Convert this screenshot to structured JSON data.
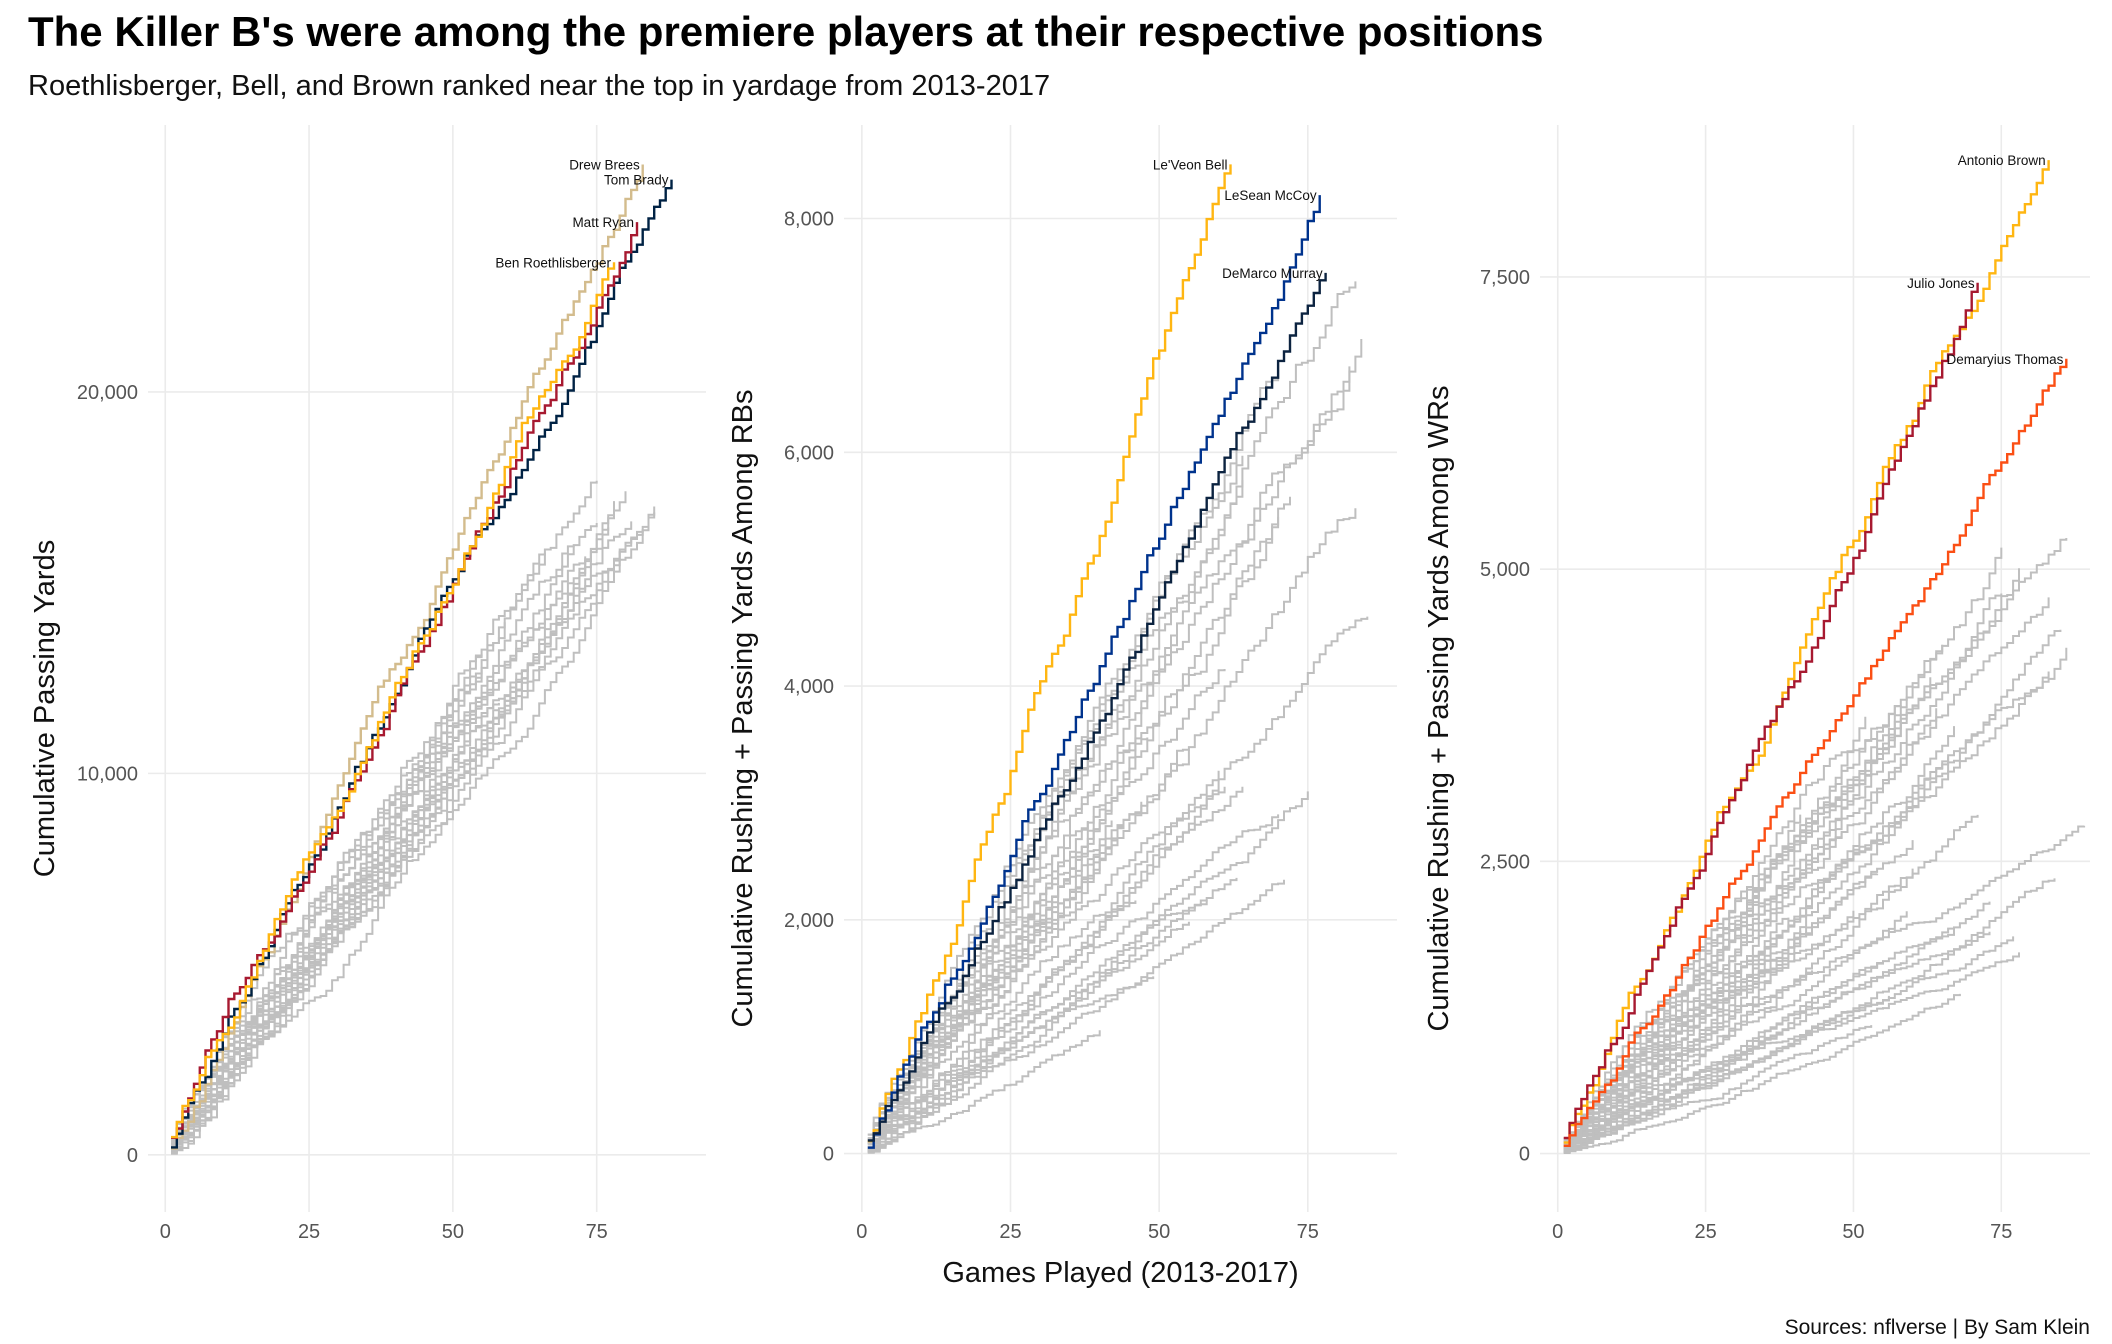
{
  "title": "The Killer B's were among the premiere players at their respective positions",
  "subtitle": "Roethlisberger, Bell, and Brown ranked near the top in yardage from 2013-2017",
  "caption": "Sources: nflverse | By Sam Klein",
  "colors": {
    "background_line": "#bfbfbf",
    "grid": "#ebebeb",
    "steelers_gold": "#FFB612"
  },
  "chart_data": [
    {
      "type": "line",
      "step": true,
      "ylabel": "Cumulative Passing Yards",
      "xlabel": "",
      "xlim": [
        -3,
        94
      ],
      "ylim": [
        -1500,
        27000
      ],
      "x_ticks": [
        0,
        25,
        50,
        75
      ],
      "y_ticks": [
        0,
        10000,
        20000
      ],
      "y_tick_labels": [
        "0",
        "10,000",
        "20,000"
      ],
      "grid": true,
      "background_series": {
        "count": 24,
        "color": "#bfbfbf",
        "games_min": 48,
        "games_max": 88,
        "rate_min": 195,
        "rate_max": 240
      },
      "series": [
        {
          "name": "Drew Brees",
          "color": "#D3BC8D",
          "games": 83,
          "total": 25965
        },
        {
          "name": "Tom Brady",
          "color": "#002244",
          "games": 88,
          "total": 25568
        },
        {
          "name": "Matt Ryan",
          "color": "#A71930",
          "games": 82,
          "total": 24455
        },
        {
          "name": "Ben Roethlisberger",
          "color": "#FFB612",
          "games": 78,
          "total": 23401
        }
      ]
    },
    {
      "type": "line",
      "step": true,
      "ylabel": "Cumulative Rushing + Passing Yards Among RBs",
      "xlabel": "Games Played (2013-2017)",
      "xlim": [
        -3,
        90
      ],
      "ylim": [
        -500,
        8800
      ],
      "x_ticks": [
        0,
        25,
        50,
        75
      ],
      "y_ticks": [
        0,
        2000,
        4000,
        6000,
        8000
      ],
      "y_tick_labels": [
        "0",
        "2,000",
        "4,000",
        "6,000",
        "8,000"
      ],
      "grid": true,
      "background_series": {
        "count": 34,
        "color": "#bfbfbf",
        "games_min": 30,
        "games_max": 86,
        "rate_min": 25,
        "rate_max": 95
      },
      "series": [
        {
          "name": "Le'Veon Bell",
          "color": "#FFB612",
          "games": 62,
          "total": 8463
        },
        {
          "name": "LeSean McCoy",
          "color": "#00338D",
          "games": 77,
          "total": 8200
        },
        {
          "name": "DeMarco Murray",
          "color": "#0C2340",
          "games": 78,
          "total": 7535
        }
      ]
    },
    {
      "type": "line",
      "step": true,
      "ylabel": "Cumulative Rushing + Passing Yards Among WRs",
      "xlabel": "",
      "xlim": [
        -3,
        90
      ],
      "ylim": [
        -500,
        8800
      ],
      "x_ticks": [
        0,
        25,
        50,
        75
      ],
      "y_ticks": [
        0,
        2500,
        5000,
        7500
      ],
      "y_tick_labels": [
        "0",
        "2,500",
        "5,000",
        "7,500"
      ],
      "grid": true,
      "background_series": {
        "count": 40,
        "color": "#bfbfbf",
        "games_min": 38,
        "games_max": 90,
        "rate_min": 20,
        "rate_max": 72
      },
      "series": [
        {
          "name": "Antonio Brown",
          "color": "#FFB612",
          "games": 83,
          "total": 8500
        },
        {
          "name": "Julio Jones",
          "color": "#A71930",
          "games": 71,
          "total": 7450
        },
        {
          "name": "Demaryius Thomas",
          "color": "#FB4F14",
          "games": 86,
          "total": 6800
        }
      ]
    }
  ]
}
